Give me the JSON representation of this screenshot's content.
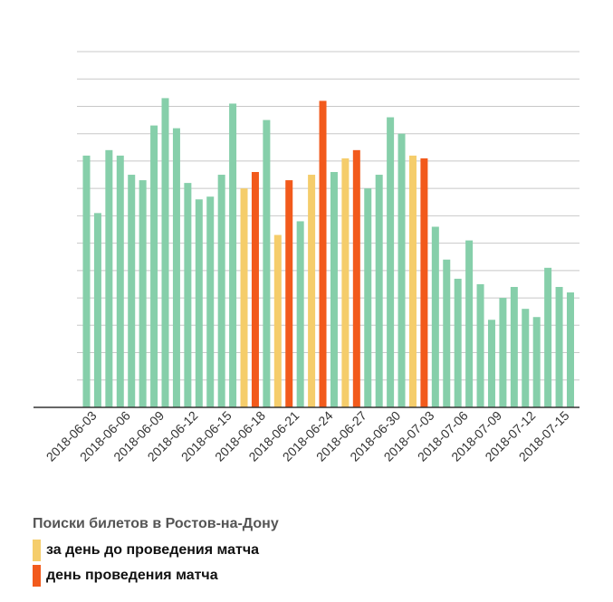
{
  "chart_data": {
    "type": "bar",
    "title": "",
    "xlabel": "",
    "ylabel": "",
    "grid": true,
    "y_axis_labels_shown": false,
    "legend_title": "Поиски билетов в Ростов-на-Дону",
    "legend": [
      {
        "label": "за день до проведения матча",
        "color": "#F5CD6B"
      },
      {
        "label": "день проведения матча",
        "color": "#F25A1C"
      }
    ],
    "default_color": "#86CFAA",
    "categories": [
      "2018-06-03",
      "2018-06-04",
      "2018-06-05",
      "2018-06-06",
      "2018-06-07",
      "2018-06-08",
      "2018-06-09",
      "2018-06-10",
      "2018-06-11",
      "2018-06-12",
      "2018-06-13",
      "2018-06-14",
      "2018-06-15",
      "2018-06-16",
      "2018-06-17",
      "2018-06-18",
      "2018-06-19",
      "2018-06-20",
      "2018-06-21",
      "2018-06-22",
      "2018-06-23",
      "2018-06-24",
      "2018-06-25",
      "2018-06-26",
      "2018-06-27",
      "2018-06-28",
      "2018-06-29",
      "2018-06-30",
      "2018-07-01",
      "2018-07-02",
      "2018-07-03",
      "2018-07-04",
      "2018-07-05",
      "2018-07-06",
      "2018-07-07",
      "2018-07-08",
      "2018-07-09",
      "2018-07-10",
      "2018-07-11",
      "2018-07-12",
      "2018-07-13",
      "2018-07-14",
      "2018-07-15",
      "2018-07-16"
    ],
    "tick_labels": [
      "2018-06-03",
      "2018-06-06",
      "2018-06-09",
      "2018-06-12",
      "2018-06-15",
      "2018-06-18",
      "2018-06-21",
      "2018-06-24",
      "2018-06-27",
      "2018-06-30",
      "2018-07-03",
      "2018-07-06",
      "2018-07-09",
      "2018-07-12",
      "2018-07-15"
    ],
    "values": [
      9.2,
      7.1,
      9.4,
      9.2,
      8.5,
      8.3,
      10.3,
      11.3,
      10.2,
      8.2,
      7.6,
      7.7,
      8.5,
      11.1,
      8.0,
      8.6,
      10.5,
      6.3,
      8.3,
      6.8,
      8.5,
      11.2,
      8.6,
      9.1,
      9.4,
      8.0,
      8.5,
      10.6,
      10.0,
      9.2,
      9.1,
      6.6,
      5.4,
      4.7,
      6.1,
      4.5,
      3.2,
      4.0,
      4.4,
      3.6,
      3.3,
      5.1,
      4.4,
      4.2
    ],
    "highlight": [
      "",
      "",
      "",
      "",
      "",
      "",
      "",
      "",
      "",
      "",
      "",
      "",
      "",
      "",
      "before",
      "match",
      "",
      "before",
      "match",
      "",
      "before",
      "match",
      "",
      "before",
      "match",
      "",
      "",
      "",
      "",
      "before",
      "match",
      "",
      "",
      "",
      "",
      "",
      "",
      "",
      "",
      "",
      "",
      "",
      "",
      ""
    ],
    "ylim": [
      0,
      13
    ]
  }
}
